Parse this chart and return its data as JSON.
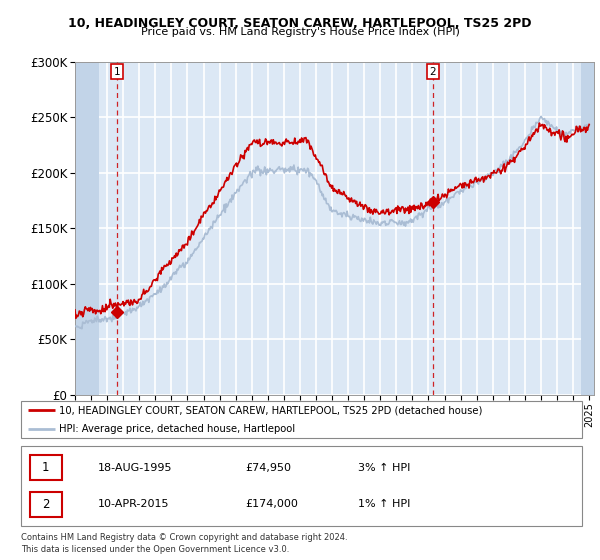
{
  "title1": "10, HEADINGLEY COURT, SEATON CAREW, HARTLEPOOL, TS25 2PD",
  "title2": "Price paid vs. HM Land Registry's House Price Index (HPI)",
  "ylim": [
    0,
    300000
  ],
  "yticks": [
    0,
    50000,
    100000,
    150000,
    200000,
    250000,
    300000
  ],
  "ytick_labels": [
    "£0",
    "£50K",
    "£100K",
    "£150K",
    "£200K",
    "£250K",
    "£300K"
  ],
  "sale1_date": 1995.63,
  "sale1_price": 74950,
  "sale2_date": 2015.27,
  "sale2_price": 174000,
  "hpi_line_color": "#aabdd4",
  "price_line_color": "#cc0000",
  "sale_dot_color": "#cc0000",
  "bg_color": "#dce8f5",
  "hatch_color": "#c2d4e8",
  "grid_color": "#ffffff",
  "legend_label1": "10, HEADINGLEY COURT, SEATON CAREW, HARTLEPOOL, TS25 2PD (detached house)",
  "legend_label2": "HPI: Average price, detached house, Hartlepool",
  "annotation1_date": "18-AUG-1995",
  "annotation1_price": "£74,950",
  "annotation1_hpi": "3% ↑ HPI",
  "annotation2_date": "10-APR-2015",
  "annotation2_price": "£174,000",
  "annotation2_hpi": "1% ↑ HPI",
  "footer": "Contains HM Land Registry data © Crown copyright and database right 2024.\nThis data is licensed under the Open Government Licence v3.0."
}
